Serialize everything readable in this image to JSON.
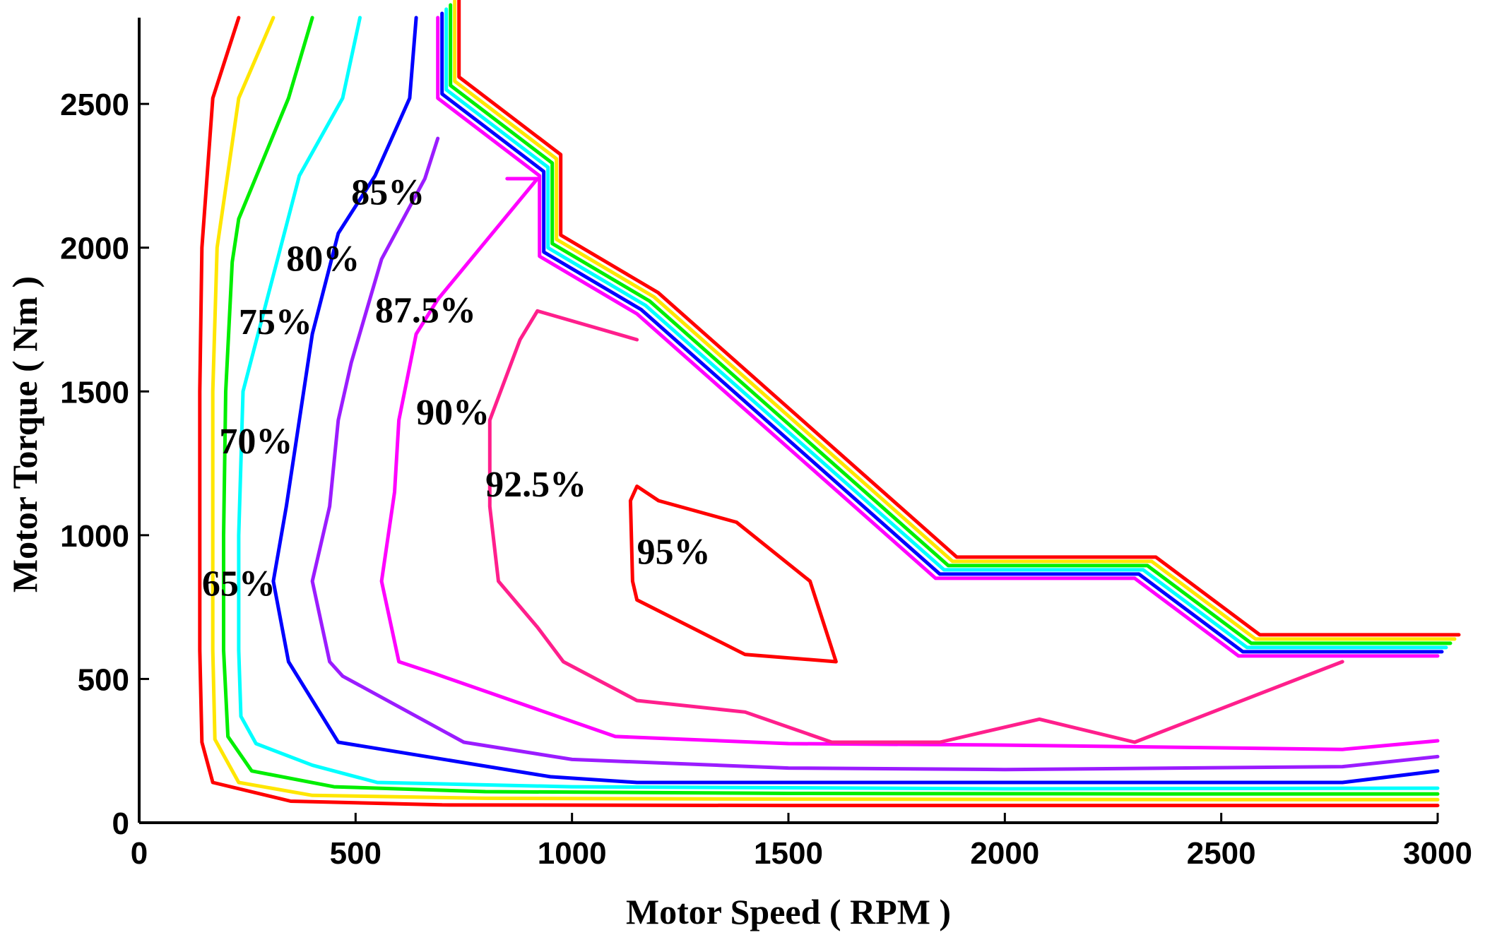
{
  "chart_data": {
    "type": "contour",
    "title": "",
    "xlabel": "Motor Speed ( RPM )",
    "ylabel": "Motor Torque ( Nm )",
    "xlim": [
      0,
      3000
    ],
    "ylim": [
      0,
      2800
    ],
    "xticks": [
      0,
      500,
      1000,
      1500,
      2000,
      2500,
      3000
    ],
    "yticks": [
      0,
      500,
      1000,
      1500,
      2000,
      2500
    ],
    "xtick_labels": [
      "0",
      "500",
      "1000",
      "1500",
      "2000",
      "2500",
      "3000"
    ],
    "ytick_labels": [
      "0",
      "500",
      "1000",
      "1500",
      "2000",
      "2500"
    ],
    "grid": false,
    "levels": [
      {
        "name": "65%",
        "color": "#ff0000",
        "points": [
          [
            230,
            2800
          ],
          [
            170,
            2520
          ],
          [
            145,
            2000
          ],
          [
            140,
            1500
          ],
          [
            140,
            1000
          ],
          [
            140,
            600
          ],
          [
            145,
            280
          ],
          [
            170,
            140
          ],
          [
            350,
            75
          ],
          [
            700,
            62
          ],
          [
            1500,
            60
          ],
          [
            2500,
            60
          ],
          [
            3000,
            60
          ]
        ],
        "label": "65%",
        "label_pos": [
          145,
          790
        ]
      },
      {
        "name": "70%",
        "color": "#ffe600",
        "points": [
          [
            310,
            2800
          ],
          [
            230,
            2520
          ],
          [
            180,
            2000
          ],
          [
            170,
            1500
          ],
          [
            170,
            1000
          ],
          [
            170,
            600
          ],
          [
            175,
            290
          ],
          [
            230,
            140
          ],
          [
            400,
            95
          ],
          [
            800,
            85
          ],
          [
            1500,
            82
          ],
          [
            2500,
            80
          ],
          [
            3000,
            80
          ]
        ],
        "label": "70%",
        "label_pos": [
          185,
          1285
        ]
      },
      {
        "name": "75%",
        "color": "#00ee00",
        "points": [
          [
            400,
            2800
          ],
          [
            345,
            2520
          ],
          [
            230,
            2100
          ],
          [
            215,
            1950
          ],
          [
            200,
            1500
          ],
          [
            195,
            1000
          ],
          [
            195,
            600
          ],
          [
            205,
            300
          ],
          [
            260,
            180
          ],
          [
            450,
            125
          ],
          [
            800,
            108
          ],
          [
            1500,
            102
          ],
          [
            2500,
            100
          ],
          [
            3000,
            100
          ]
        ],
        "label": "75%",
        "label_pos": [
          230,
          1700
        ]
      },
      {
        "name": "80%",
        "color": "#00ffff",
        "points": [
          [
            510,
            2800
          ],
          [
            470,
            2520
          ],
          [
            370,
            2250
          ],
          [
            240,
            1500
          ],
          [
            230,
            1000
          ],
          [
            230,
            600
          ],
          [
            235,
            370
          ],
          [
            270,
            275
          ],
          [
            400,
            200
          ],
          [
            550,
            140
          ],
          [
            1000,
            125
          ],
          [
            2000,
            118
          ],
          [
            3000,
            120
          ]
        ],
        "label": "80%",
        "label_pos": [
          340,
          1920
        ]
      },
      {
        "name": "85%",
        "color": "#0000ff",
        "points": [
          [
            640,
            2800
          ],
          [
            625,
            2520
          ],
          [
            545,
            2250
          ],
          [
            460,
            2050
          ],
          [
            400,
            1700
          ],
          [
            370,
            1400
          ],
          [
            340,
            1100
          ],
          [
            310,
            840
          ],
          [
            345,
            560
          ],
          [
            460,
            280
          ],
          [
            950,
            160
          ],
          [
            1150,
            140
          ],
          [
            2000,
            140
          ],
          [
            2780,
            140
          ],
          [
            3000,
            180
          ]
        ],
        "label": "85%",
        "label_pos": [
          490,
          2150
        ]
      },
      {
        "name": "87.5%",
        "color": "#9b1cff",
        "points": [
          [
            690,
            2380
          ],
          [
            660,
            2240
          ],
          [
            560,
            1960
          ],
          [
            490,
            1600
          ],
          [
            460,
            1400
          ],
          [
            440,
            1100
          ],
          [
            400,
            840
          ],
          [
            440,
            560
          ],
          [
            470,
            510
          ],
          [
            750,
            280
          ],
          [
            1000,
            220
          ],
          [
            1500,
            190
          ],
          [
            2000,
            185
          ],
          [
            2780,
            195
          ],
          [
            3000,
            230
          ]
        ],
        "label": "87.5%",
        "label_pos": [
          545,
          1740
        ]
      },
      {
        "name": "90%",
        "color": "#ff00ff",
        "points": [
          [
            850,
            2240
          ],
          [
            920,
            2240
          ],
          [
            920,
            2240
          ],
          [
            690,
            1820
          ],
          [
            640,
            1700
          ],
          [
            600,
            1400
          ],
          [
            590,
            1150
          ],
          [
            560,
            840
          ],
          [
            600,
            560
          ],
          [
            680,
            520
          ],
          [
            1100,
            300
          ],
          [
            1500,
            275
          ],
          [
            2000,
            270
          ],
          [
            2780,
            255
          ],
          [
            3000,
            285
          ]
        ],
        "label": "90%",
        "label_pos": [
          640,
          1385
        ]
      },
      {
        "name": "92.5%",
        "color": "#ff1f8c",
        "points": [
          [
            1150,
            1680
          ],
          [
            920,
            1780
          ],
          [
            880,
            1680
          ],
          [
            810,
            1400
          ],
          [
            810,
            1100
          ],
          [
            830,
            840
          ],
          [
            920,
            680
          ],
          [
            980,
            560
          ],
          [
            1150,
            425
          ],
          [
            1400,
            385
          ],
          [
            1600,
            280
          ],
          [
            1850,
            280
          ],
          [
            2080,
            360
          ],
          [
            2300,
            280
          ],
          [
            2780,
            560
          ]
        ],
        "label": "92.5%",
        "label_pos": [
          800,
          1135
        ]
      },
      {
        "name": "95%",
        "color": "#ff0000",
        "points": [
          [
            1150,
            1170
          ],
          [
            1200,
            1120
          ],
          [
            1380,
            1045
          ],
          [
            1550,
            840
          ],
          [
            1610,
            560
          ],
          [
            1400,
            585
          ],
          [
            1150,
            775
          ],
          [
            1140,
            840
          ],
          [
            1135,
            1120
          ],
          [
            1150,
            1170
          ]
        ],
        "label": "95%",
        "label_pos": [
          1150,
          900
        ]
      }
    ],
    "boundary": {
      "name": "torque-limit",
      "colors": [
        "#ff00ff",
        "#0000ff",
        "#00ffff",
        "#00ee00",
        "#ffe600",
        "#ff0000"
      ],
      "points": [
        [
          690,
          2800
        ],
        [
          690,
          2520
        ],
        [
          925,
          2250
        ],
        [
          925,
          1970
        ],
        [
          1150,
          1770
        ],
        [
          1840,
          850
        ],
        [
          2300,
          850
        ],
        [
          2540,
          580
        ],
        [
          3000,
          580
        ]
      ]
    }
  }
}
